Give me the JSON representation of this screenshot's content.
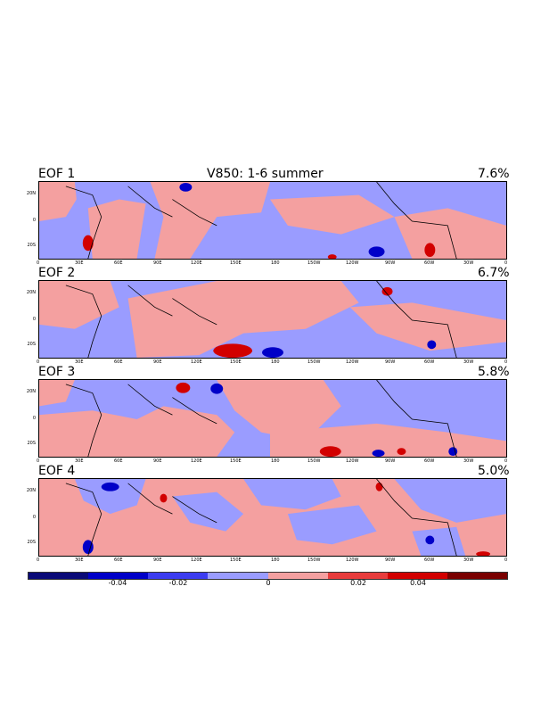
{
  "header": {
    "main_title": "V850: 1-6 summer"
  },
  "panels": [
    {
      "label": "EOF 1",
      "variance": "7.6%"
    },
    {
      "label": "EOF 2",
      "variance": "6.7%"
    },
    {
      "label": "EOF 3",
      "variance": "5.8%"
    },
    {
      "label": "EOF 4",
      "variance": "5.0%"
    }
  ],
  "axes": {
    "lon_ticks": [
      "0",
      "30E",
      "60E",
      "90E",
      "120E",
      "150E",
      "180",
      "150W",
      "120W",
      "90W",
      "60W",
      "30W",
      "0"
    ],
    "lat_ticks": [
      "20N",
      "0",
      "20S"
    ]
  },
  "colorbar": {
    "colors": [
      "#0a0a78",
      "#0000c8",
      "#3c3cf0",
      "#9a9cff",
      "#f4a0a0",
      "#e83c3c",
      "#d20000",
      "#7a0000"
    ],
    "labels": [
      "-0.04",
      "-0.02",
      "0",
      "0.02",
      "0.04"
    ]
  }
}
